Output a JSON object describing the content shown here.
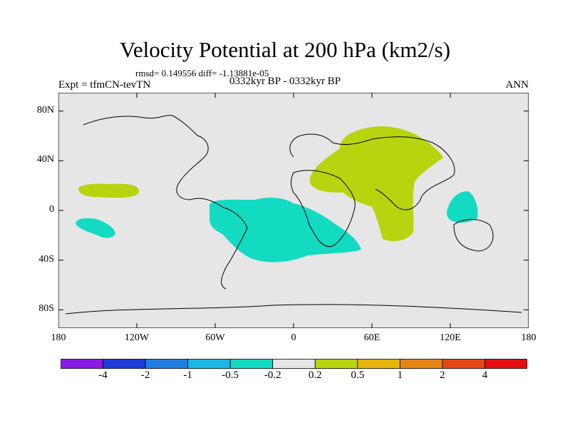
{
  "title": "Velocity Potential at 200 hPa (km2/s)",
  "stats": "rmsd= 0.149556 diff= -1.13881e-05",
  "experiment": "Expt = tfmCN-tevTN",
  "period": "0332kyr BP - 0332kyr BP",
  "season": "ANN",
  "lat_ticks": [
    {
      "label": "80N",
      "lat": 80
    },
    {
      "label": "40N",
      "lat": 40
    },
    {
      "label": "0",
      "lat": 0
    },
    {
      "label": "40S",
      "lat": -40
    },
    {
      "label": "80S",
      "lat": -80
    }
  ],
  "lon_ticks": [
    {
      "label": "180",
      "lon": -180
    },
    {
      "label": "120W",
      "lon": -120
    },
    {
      "label": "60W",
      "lon": -60
    },
    {
      "label": "0",
      "lon": 0
    },
    {
      "label": "60E",
      "lon": 60
    },
    {
      "label": "120E",
      "lon": 120
    },
    {
      "label": "180",
      "lon": 180
    }
  ],
  "colorbar": {
    "colors": [
      "#8a1ae6",
      "#1f3ad9",
      "#1e7ee0",
      "#1bb8e6",
      "#12dbc2",
      "#e6e6e6",
      "#b8d40f",
      "#e6b40a",
      "#e68414",
      "#e64814",
      "#e60f0f"
    ],
    "labels": [
      "-4",
      "-2",
      "-1",
      "-0.5",
      "-0.2",
      "0.2",
      "0.5",
      "1",
      "2",
      "4"
    ]
  },
  "map_colors": {
    "background": "#e6e6e6",
    "positive": "#b8d40f",
    "negative": "#12dbc2"
  }
}
